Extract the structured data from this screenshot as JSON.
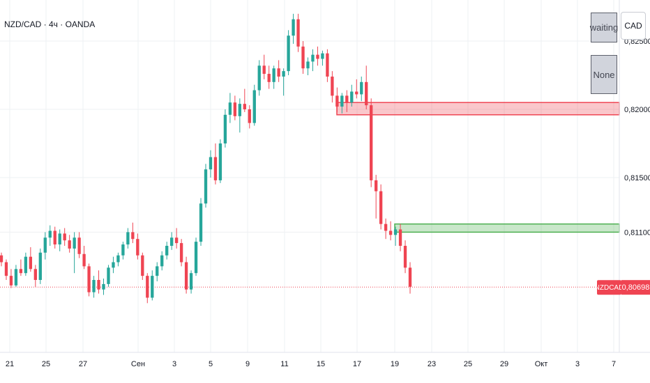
{
  "header": {
    "symbol_title": "NZD/CAD · 4ч · OANDA",
    "currency_button": "CAD"
  },
  "status_panel": {
    "state_label": "waiting",
    "signal_label": "None"
  },
  "colors": {
    "up": "#26a69a",
    "down": "#ef4452",
    "supply_zone": "#ef4452",
    "demand_zone": "#4caf50",
    "grid": "#eef0f3",
    "axis_text": "#131722",
    "price_line": "#ef4452"
  },
  "chart_data": {
    "type": "candlestick",
    "symbol": "NZDCAD",
    "ylim": [
      0.8025,
      0.8275
    ],
    "y_ticks": [
      "0,82500",
      "0,82000",
      "0,81500",
      "0,81100"
    ],
    "x_ticks": [
      "21",
      "25",
      "27",
      "Сен",
      "3",
      "5",
      "9",
      "11",
      "15",
      "17",
      "19",
      "23",
      "25",
      "29",
      "Окт",
      "3",
      "7"
    ],
    "last_price": {
      "label": "NZDCAD",
      "value": "0,80698"
    },
    "supply_zone": {
      "top": 0.8205,
      "bottom": 0.8196
    },
    "demand_zone": {
      "top": 0.8116,
      "bottom": 0.811
    },
    "candles": [
      [
        0.8093,
        0.8095,
        0.8085,
        0.8088
      ],
      [
        0.8088,
        0.809,
        0.8075,
        0.8078
      ],
      [
        0.8078,
        0.8083,
        0.8069,
        0.8071
      ],
      [
        0.8071,
        0.8086,
        0.807,
        0.8083
      ],
      [
        0.8083,
        0.809,
        0.8078,
        0.808
      ],
      [
        0.808,
        0.8095,
        0.8078,
        0.8092
      ],
      [
        0.8092,
        0.8099,
        0.8081,
        0.8083
      ],
      [
        0.8083,
        0.8086,
        0.807,
        0.8075
      ],
      [
        0.8075,
        0.8098,
        0.8072,
        0.8095
      ],
      [
        0.8095,
        0.811,
        0.809,
        0.8106
      ],
      [
        0.8106,
        0.8115,
        0.81,
        0.8111
      ],
      [
        0.8111,
        0.8114,
        0.8098,
        0.8101
      ],
      [
        0.8101,
        0.8112,
        0.8096,
        0.8109
      ],
      [
        0.8109,
        0.8113,
        0.81,
        0.8104
      ],
      [
        0.8104,
        0.8108,
        0.8095,
        0.8098
      ],
      [
        0.8098,
        0.811,
        0.808,
        0.8106
      ],
      [
        0.8106,
        0.811,
        0.8091,
        0.8094
      ],
      [
        0.8094,
        0.81,
        0.8083,
        0.8085
      ],
      [
        0.8085,
        0.8087,
        0.8063,
        0.8066
      ],
      [
        0.8066,
        0.8078,
        0.8062,
        0.8075
      ],
      [
        0.8075,
        0.8082,
        0.8065,
        0.8068
      ],
      [
        0.8068,
        0.8076,
        0.8064,
        0.8072
      ],
      [
        0.8072,
        0.8086,
        0.807,
        0.8084
      ],
      [
        0.8084,
        0.8092,
        0.808,
        0.8088
      ],
      [
        0.8088,
        0.8095,
        0.8085,
        0.8093
      ],
      [
        0.8093,
        0.8103,
        0.809,
        0.8101
      ],
      [
        0.8101,
        0.8113,
        0.8098,
        0.811
      ],
      [
        0.811,
        0.8117,
        0.8102,
        0.8105
      ],
      [
        0.8105,
        0.8109,
        0.809,
        0.8093
      ],
      [
        0.8093,
        0.8095,
        0.8075,
        0.8078
      ],
      [
        0.8078,
        0.808,
        0.8058,
        0.8062
      ],
      [
        0.8062,
        0.8082,
        0.806,
        0.8078
      ],
      [
        0.8078,
        0.8088,
        0.8074,
        0.8085
      ],
      [
        0.8085,
        0.8096,
        0.8082,
        0.8093
      ],
      [
        0.8093,
        0.8103,
        0.809,
        0.81
      ],
      [
        0.81,
        0.811,
        0.8097,
        0.8106
      ],
      [
        0.8106,
        0.8113,
        0.8098,
        0.8102
      ],
      [
        0.8102,
        0.8105,
        0.8085,
        0.8088
      ],
      [
        0.8088,
        0.8092,
        0.8065,
        0.8068
      ],
      [
        0.8068,
        0.8082,
        0.8065,
        0.808
      ],
      [
        0.808,
        0.8106,
        0.8078,
        0.8103
      ],
      [
        0.8103,
        0.8135,
        0.81,
        0.8131
      ],
      [
        0.8131,
        0.816,
        0.8128,
        0.8156
      ],
      [
        0.8156,
        0.817,
        0.815,
        0.8165
      ],
      [
        0.8165,
        0.8175,
        0.8145,
        0.8148
      ],
      [
        0.8148,
        0.8178,
        0.8146,
        0.8175
      ],
      [
        0.8175,
        0.82,
        0.8172,
        0.8196
      ],
      [
        0.8196,
        0.8212,
        0.819,
        0.8205
      ],
      [
        0.8205,
        0.821,
        0.8192,
        0.8195
      ],
      [
        0.8195,
        0.8208,
        0.8183,
        0.8204
      ],
      [
        0.8204,
        0.8215,
        0.8198,
        0.82
      ],
      [
        0.82,
        0.8203,
        0.8186,
        0.819
      ],
      [
        0.819,
        0.8218,
        0.8188,
        0.8214
      ],
      [
        0.8214,
        0.8236,
        0.821,
        0.8232
      ],
      [
        0.8232,
        0.824,
        0.8222,
        0.8226
      ],
      [
        0.8226,
        0.8232,
        0.8215,
        0.822
      ],
      [
        0.822,
        0.8232,
        0.8215,
        0.823
      ],
      [
        0.823,
        0.8236,
        0.822,
        0.8224
      ],
      [
        0.8224,
        0.823,
        0.821,
        0.8228
      ],
      [
        0.8228,
        0.8258,
        0.8225,
        0.8254
      ],
      [
        0.8254,
        0.827,
        0.8248,
        0.8266
      ],
      [
        0.8266,
        0.827,
        0.8242,
        0.8246
      ],
      [
        0.8246,
        0.825,
        0.8226,
        0.823
      ],
      [
        0.823,
        0.8238,
        0.8225,
        0.8235
      ],
      [
        0.8235,
        0.8244,
        0.8228,
        0.824
      ],
      [
        0.824,
        0.8246,
        0.8232,
        0.8237
      ],
      [
        0.8237,
        0.8243,
        0.8232,
        0.8241
      ],
      [
        0.8241,
        0.8244,
        0.822,
        0.8224
      ],
      [
        0.8224,
        0.8228,
        0.8205,
        0.821
      ],
      [
        0.821,
        0.8216,
        0.8198,
        0.8202
      ],
      [
        0.8202,
        0.8212,
        0.8197,
        0.821
      ],
      [
        0.821,
        0.8214,
        0.8198,
        0.8205
      ],
      [
        0.8205,
        0.8218,
        0.8202,
        0.8213
      ],
      [
        0.8213,
        0.8222,
        0.8208,
        0.8211
      ],
      [
        0.8211,
        0.8224,
        0.8206,
        0.822
      ],
      [
        0.822,
        0.8232,
        0.82,
        0.8203
      ],
      [
        0.8203,
        0.8208,
        0.8143,
        0.8148
      ],
      [
        0.8148,
        0.8152,
        0.812,
        0.814
      ],
      [
        0.814,
        0.8145,
        0.8112,
        0.8116
      ],
      [
        0.8116,
        0.812,
        0.8105,
        0.8111
      ],
      [
        0.8111,
        0.8118,
        0.8104,
        0.8108
      ],
      [
        0.8108,
        0.8114,
        0.81,
        0.8112
      ],
      [
        0.8112,
        0.8116,
        0.8096,
        0.81
      ],
      [
        0.81,
        0.8104,
        0.808,
        0.8084
      ],
      [
        0.8084,
        0.8088,
        0.8065,
        0.807
      ]
    ]
  }
}
